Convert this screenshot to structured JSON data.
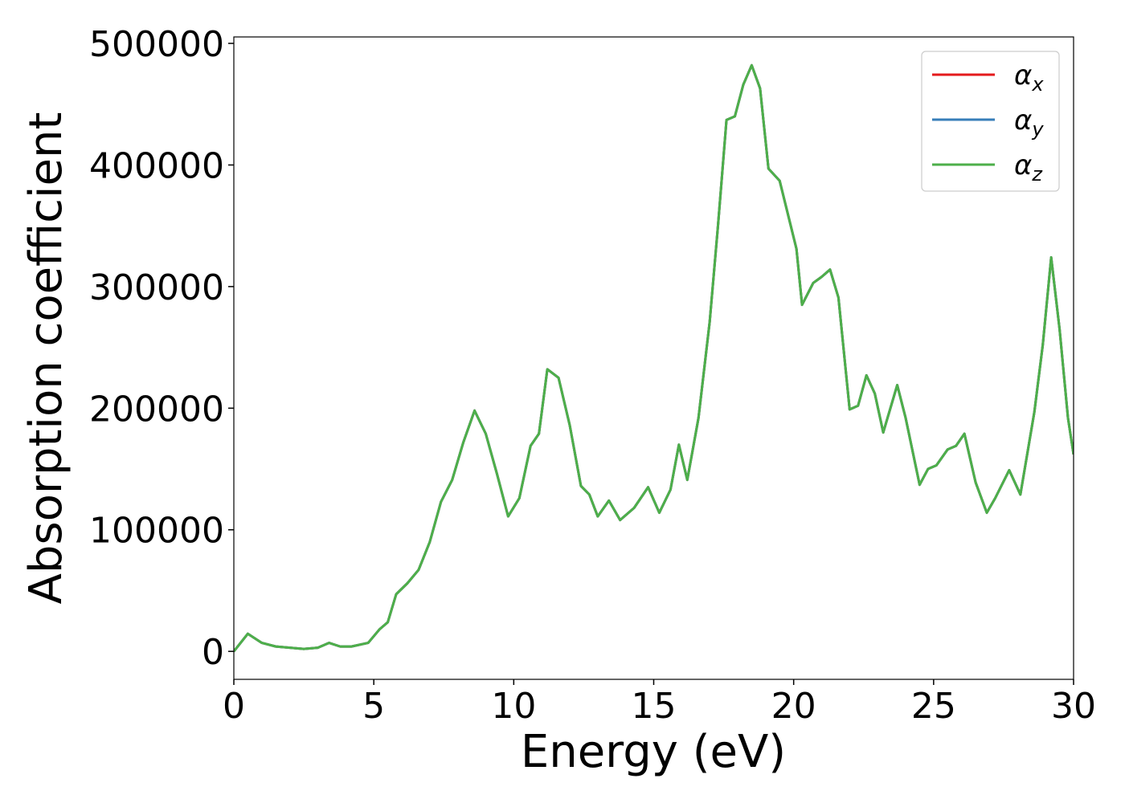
{
  "chart_data": {
    "type": "line",
    "xlabel": "Energy (eV)",
    "ylabel": "Absorption coefficient",
    "x": [
      0,
      0.5,
      1.0,
      1.5,
      2.0,
      2.5,
      3.0,
      3.4,
      3.8,
      4.2,
      4.8,
      5.2,
      5.5,
      5.8,
      6.2,
      6.6,
      7.0,
      7.4,
      7.8,
      8.2,
      8.6,
      9.0,
      9.4,
      9.8,
      10.2,
      10.6,
      10.9,
      11.2,
      11.6,
      12.0,
      12.4,
      12.7,
      13.0,
      13.4,
      13.8,
      14.3,
      14.8,
      15.2,
      15.6,
      15.9,
      16.2,
      16.6,
      17.0,
      17.3,
      17.6,
      17.9,
      18.2,
      18.5,
      18.8,
      19.1,
      19.5,
      19.8,
      20.1,
      20.3,
      20.7,
      21.0,
      21.3,
      21.6,
      22.0,
      22.3,
      22.6,
      22.9,
      23.2,
      23.7,
      24.0,
      24.5,
      24.8,
      25.1,
      25.5,
      25.8,
      26.1,
      26.5,
      26.9,
      27.2,
      27.7,
      28.1,
      28.6,
      28.9,
      29.2,
      29.5,
      29.8,
      30.0
    ],
    "series": [
      {
        "name": "αx",
        "color": "#e41a1c",
        "values": [
          0,
          14500,
          7000,
          4000,
          3000,
          2000,
          3000,
          7000,
          4000,
          4000,
          7000,
          18000,
          24000,
          47000,
          56000,
          67000,
          90000,
          123000,
          141000,
          172000,
          198000,
          179000,
          146000,
          111000,
          126000,
          169000,
          179000,
          232000,
          225000,
          186000,
          136000,
          129000,
          111000,
          124000,
          108000,
          118000,
          135000,
          114000,
          133000,
          170000,
          141000,
          192000,
          271000,
          351000,
          437000,
          440000,
          466000,
          482000,
          463000,
          397000,
          387000,
          359000,
          331000,
          285000,
          303000,
          308000,
          314000,
          291000,
          199000,
          202000,
          227000,
          212000,
          180000,
          219000,
          192000,
          137000,
          150000,
          153000,
          166000,
          169000,
          179000,
          139000,
          114000,
          126000,
          149000,
          129000,
          197000,
          252000,
          324000,
          265000,
          192000,
          162000
        ]
      },
      {
        "name": "αy",
        "color": "#377eb8",
        "values": [
          0,
          14500,
          7000,
          4000,
          3000,
          2000,
          3000,
          7000,
          4000,
          4000,
          7000,
          18000,
          24000,
          47000,
          56000,
          67000,
          90000,
          123000,
          141000,
          172000,
          198000,
          179000,
          146000,
          111000,
          126000,
          169000,
          179000,
          232000,
          225000,
          186000,
          136000,
          129000,
          111000,
          124000,
          108000,
          118000,
          135000,
          114000,
          133000,
          170000,
          141000,
          192000,
          271000,
          351000,
          437000,
          440000,
          466000,
          482000,
          463000,
          397000,
          387000,
          359000,
          331000,
          285000,
          303000,
          308000,
          314000,
          291000,
          199000,
          202000,
          227000,
          212000,
          180000,
          219000,
          192000,
          137000,
          150000,
          153000,
          166000,
          169000,
          179000,
          139000,
          114000,
          126000,
          149000,
          129000,
          197000,
          252000,
          324000,
          265000,
          192000,
          162000
        ]
      },
      {
        "name": "αz",
        "color": "#4daf4a",
        "values": [
          0,
          14500,
          7000,
          4000,
          3000,
          2000,
          3000,
          7000,
          4000,
          4000,
          7000,
          18000,
          24000,
          47000,
          56000,
          67000,
          90000,
          123000,
          141000,
          172000,
          198000,
          179000,
          146000,
          111000,
          126000,
          169000,
          179000,
          232000,
          225000,
          186000,
          136000,
          129000,
          111000,
          124000,
          108000,
          118000,
          135000,
          114000,
          133000,
          170000,
          141000,
          192000,
          271000,
          351000,
          437000,
          440000,
          466000,
          482000,
          463000,
          397000,
          387000,
          359000,
          331000,
          285000,
          303000,
          308000,
          314000,
          291000,
          199000,
          202000,
          227000,
          212000,
          180000,
          219000,
          192000,
          137000,
          150000,
          153000,
          166000,
          169000,
          179000,
          139000,
          114000,
          126000,
          149000,
          129000,
          197000,
          252000,
          324000,
          265000,
          192000,
          162000
        ]
      }
    ],
    "xlim": [
      0,
      30
    ],
    "xticks": [
      0,
      5,
      10,
      15,
      20,
      25,
      30
    ],
    "ylim": [
      -23000,
      505300
    ],
    "yticks": [
      0,
      100000,
      200000,
      300000,
      400000,
      500000
    ],
    "grid": false,
    "legend": "upper right"
  }
}
